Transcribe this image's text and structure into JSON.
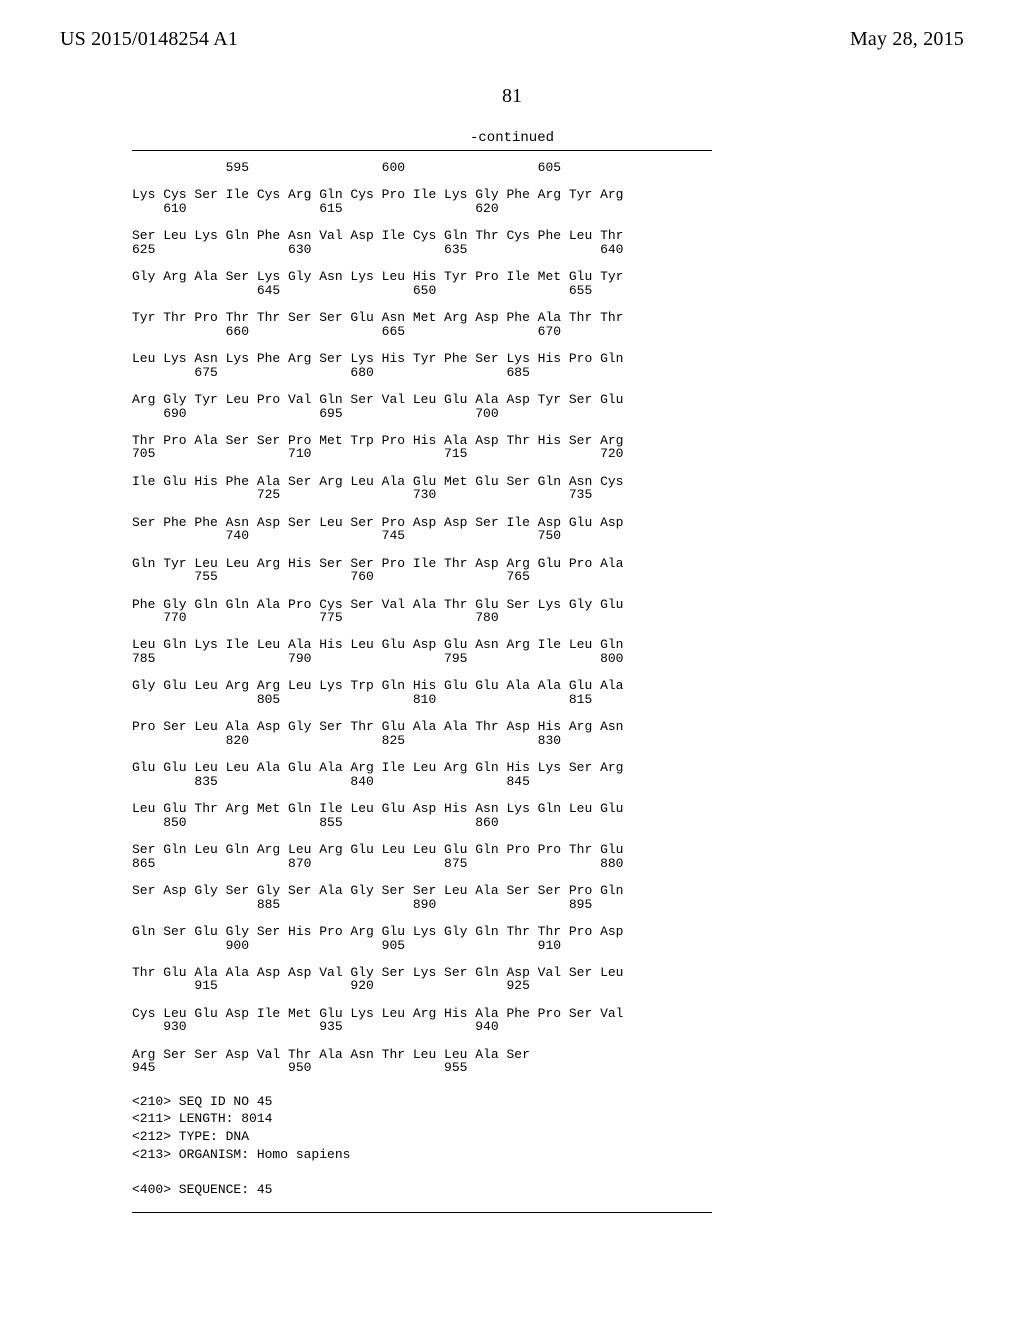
{
  "header": {
    "left": "US 2015/0148254 A1",
    "right": "May 28, 2015"
  },
  "page_number": "81",
  "continued_label": "-continued",
  "sequence_lines": [
    "            595                 600                 605",
    "",
    "Lys Cys Ser Ile Cys Arg Gln Cys Pro Ile Lys Gly Phe Arg Tyr Arg",
    "    610                 615                 620",
    "",
    "Ser Leu Lys Gln Phe Asn Val Asp Ile Cys Gln Thr Cys Phe Leu Thr",
    "625                 630                 635                 640",
    "",
    "Gly Arg Ala Ser Lys Gly Asn Lys Leu His Tyr Pro Ile Met Glu Tyr",
    "                645                 650                 655",
    "",
    "Tyr Thr Pro Thr Thr Ser Ser Glu Asn Met Arg Asp Phe Ala Thr Thr",
    "            660                 665                 670",
    "",
    "Leu Lys Asn Lys Phe Arg Ser Lys His Tyr Phe Ser Lys His Pro Gln",
    "        675                 680                 685",
    "",
    "Arg Gly Tyr Leu Pro Val Gln Ser Val Leu Glu Ala Asp Tyr Ser Glu",
    "    690                 695                 700",
    "",
    "Thr Pro Ala Ser Ser Pro Met Trp Pro His Ala Asp Thr His Ser Arg",
    "705                 710                 715                 720",
    "",
    "Ile Glu His Phe Ala Ser Arg Leu Ala Glu Met Glu Ser Gln Asn Cys",
    "                725                 730                 735",
    "",
    "Ser Phe Phe Asn Asp Ser Leu Ser Pro Asp Asp Ser Ile Asp Glu Asp",
    "            740                 745                 750",
    "",
    "Gln Tyr Leu Leu Arg His Ser Ser Pro Ile Thr Asp Arg Glu Pro Ala",
    "        755                 760                 765",
    "",
    "Phe Gly Gln Gln Ala Pro Cys Ser Val Ala Thr Glu Ser Lys Gly Glu",
    "    770                 775                 780",
    "",
    "Leu Gln Lys Ile Leu Ala His Leu Glu Asp Glu Asn Arg Ile Leu Gln",
    "785                 790                 795                 800",
    "",
    "Gly Glu Leu Arg Arg Leu Lys Trp Gln His Glu Glu Ala Ala Glu Ala",
    "                805                 810                 815",
    "",
    "Pro Ser Leu Ala Asp Gly Ser Thr Glu Ala Ala Thr Asp His Arg Asn",
    "            820                 825                 830",
    "",
    "Glu Glu Leu Leu Ala Glu Ala Arg Ile Leu Arg Gln His Lys Ser Arg",
    "        835                 840                 845",
    "",
    "Leu Glu Thr Arg Met Gln Ile Leu Glu Asp His Asn Lys Gln Leu Glu",
    "    850                 855                 860",
    "",
    "Ser Gln Leu Gln Arg Leu Arg Glu Leu Leu Glu Gln Pro Pro Thr Glu",
    "865                 870                 875                 880",
    "",
    "Ser Asp Gly Ser Gly Ser Ala Gly Ser Ser Leu Ala Ser Ser Pro Gln",
    "                885                 890                 895",
    "",
    "Gln Ser Glu Gly Ser His Pro Arg Glu Lys Gly Gln Thr Thr Pro Asp",
    "            900                 905                 910",
    "",
    "Thr Glu Ala Ala Asp Asp Val Gly Ser Lys Ser Gln Asp Val Ser Leu",
    "        915                 920                 925",
    "",
    "Cys Leu Glu Asp Ile Met Glu Lys Leu Arg His Ala Phe Pro Ser Val",
    "    930                 935                 940",
    "",
    "Arg Ser Ser Asp Val Thr Ala Asn Thr Leu Leu Ala Ser",
    "945                 950                 955"
  ],
  "meta_lines": [
    "<210> SEQ ID NO 45",
    "<211> LENGTH: 8014",
    "<212> TYPE: DNA",
    "<213> ORGANISM: Homo sapiens",
    "",
    "<400> SEQUENCE: 45"
  ]
}
